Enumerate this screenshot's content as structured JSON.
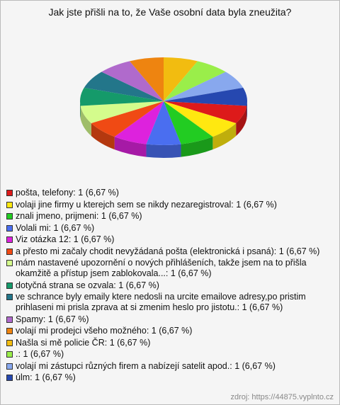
{
  "chart_data": {
    "type": "pie",
    "title": "Jak jste přišli na to, že Vaše osobní data byla zneužita?",
    "categories": [
      "pošta, telefony:",
      "volaji jine firmy u kterejch sem se nikdy nezaregistroval:",
      "znali jmeno, prijmeni:",
      "Volali mi:",
      "Viz otázka 12:",
      "a přesto mi začaly chodit nevyžádaná pošta (elektronická i psaná):",
      "mám nastavené upozornění o nových přihlášeních, takže jsem na to přišla okamžitě a přístup jsem zablokovala...:",
      "dotyčná strana se ozvala:",
      "ve schrance byly emaily ktere nedosli na urcite emailove adresy,po pristim prihlaseni mi prisla zprava at si zmenim heslo pro jistotu.:",
      "Spamy:",
      "volají mi prodejci všeho možného:",
      "Našla si mě policie ČR:",
      ".:",
      "volají mi zástupci různých firem a nabízejí satelit apod.:",
      "úlm:"
    ],
    "values": [
      1,
      1,
      1,
      1,
      1,
      1,
      1,
      1,
      1,
      1,
      1,
      1,
      1,
      1,
      1
    ],
    "value_labels": [
      "1 (6,67 %)",
      "1 (6,67 %)",
      "1 (6,67 %)",
      "1 (6,67 %)",
      "1 (6,67 %)",
      "1 (6,67 %)",
      "1 (6,67 %)",
      "1 (6,67 %)",
      "1 (6,67 %)",
      "1 (6,67 %)",
      "1 (6,67 %)",
      "1 (6,67 %)",
      "1 (6,67 %)",
      "1 (6,67 %)",
      "1 (6,67 %)"
    ],
    "colors": [
      "#dd1a1a",
      "#ffe810",
      "#22cc22",
      "#4a6ef0",
      "#dd22dd",
      "#f04a14",
      "#d4fc8c",
      "#159a6a",
      "#23768a",
      "#b06acc",
      "#ee8410",
      "#f2bc10",
      "#9aee4a",
      "#88a8ee",
      "#2648b0"
    ],
    "source": "zdroj: https://44875.vyplnto.cz"
  }
}
